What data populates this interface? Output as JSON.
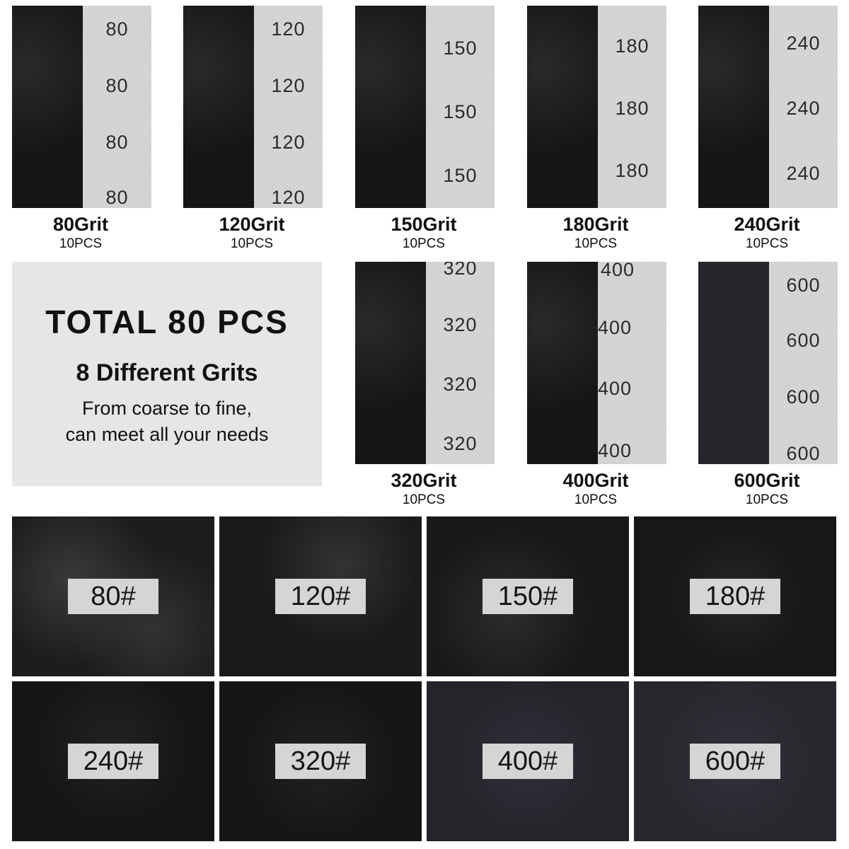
{
  "sheets": [
    {
      "grit": "80Grit",
      "pcs": "10PCS",
      "number": "80"
    },
    {
      "grit": "120Grit",
      "pcs": "10PCS",
      "number": "120"
    },
    {
      "grit": "150Grit",
      "pcs": "10PCS",
      "number": "150"
    },
    {
      "grit": "180Grit",
      "pcs": "10PCS",
      "number": "180"
    },
    {
      "grit": "240Grit",
      "pcs": "10PCS",
      "number": "240"
    },
    {
      "grit": "320Grit",
      "pcs": "10PCS",
      "number": "320"
    },
    {
      "grit": "400Grit",
      "pcs": "10PCS",
      "number": "400"
    },
    {
      "grit": "600Grit",
      "pcs": "10PCS",
      "number": "600"
    }
  ],
  "info": {
    "total": "TOTAL 80 PCS",
    "different": "8 Different Grits",
    "line1": "From coarse to fine,",
    "line2": "can meet all your needs"
  },
  "closeups": [
    "80#",
    "120#",
    "150#",
    "180#",
    "240#",
    "320#",
    "400#",
    "600#"
  ],
  "colors": {
    "sheet_front": "#151515",
    "sheet_back": "#d4d4d4",
    "info_bg": "#e6e6e6",
    "label_bg": "#d5d5d5"
  }
}
